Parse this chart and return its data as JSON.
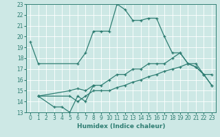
{
  "xlabel": "Humidex (Indice chaleur)",
  "bg_color": "#cde8e5",
  "line_color": "#2e7d72",
  "grid_color": "#ffffff",
  "xlim": [
    -0.5,
    23.5
  ],
  "ylim": [
    13,
    23
  ],
  "xticks": [
    0,
    1,
    2,
    3,
    4,
    5,
    6,
    7,
    8,
    9,
    10,
    11,
    12,
    13,
    14,
    15,
    16,
    17,
    18,
    19,
    20,
    21,
    22,
    23
  ],
  "yticks": [
    13,
    14,
    15,
    16,
    17,
    18,
    19,
    20,
    21,
    22,
    23
  ],
  "s1x": [
    0,
    1,
    6,
    7,
    8,
    9,
    10,
    11,
    12,
    13,
    14,
    15,
    16,
    17,
    18,
    19,
    20,
    21,
    22,
    23
  ],
  "s1y": [
    19.5,
    17.5,
    17.5,
    18.5,
    20.5,
    20.5,
    20.5,
    23.0,
    22.5,
    21.5,
    21.5,
    21.7,
    21.7,
    20.0,
    18.5,
    18.5,
    17.5,
    17.2,
    16.5,
    16.5
  ],
  "s2x": [
    1,
    3,
    4,
    5,
    6,
    7,
    8
  ],
  "s2y": [
    14.5,
    13.5,
    13.5,
    13.0,
    14.5,
    14.0,
    15.5
  ],
  "s3x": [
    1,
    5,
    6,
    7,
    8,
    9,
    10,
    11,
    12,
    13,
    14,
    15,
    16,
    17,
    18,
    19,
    20,
    21,
    22,
    23
  ],
  "s3y": [
    14.5,
    15.0,
    15.2,
    15.0,
    15.5,
    15.5,
    16.0,
    16.5,
    16.5,
    17.0,
    17.0,
    17.5,
    17.5,
    17.5,
    18.0,
    18.5,
    17.5,
    17.2,
    16.5,
    15.5
  ],
  "s4x": [
    1,
    5,
    6,
    7,
    8,
    9,
    10,
    11,
    12,
    13,
    14,
    15,
    16,
    17,
    18,
    19,
    20,
    21,
    22,
    23
  ],
  "s4y": [
    14.5,
    14.5,
    14.0,
    14.5,
    15.0,
    15.0,
    15.0,
    15.3,
    15.5,
    15.8,
    16.0,
    16.3,
    16.5,
    16.8,
    17.0,
    17.2,
    17.5,
    17.5,
    16.5,
    15.5
  ]
}
